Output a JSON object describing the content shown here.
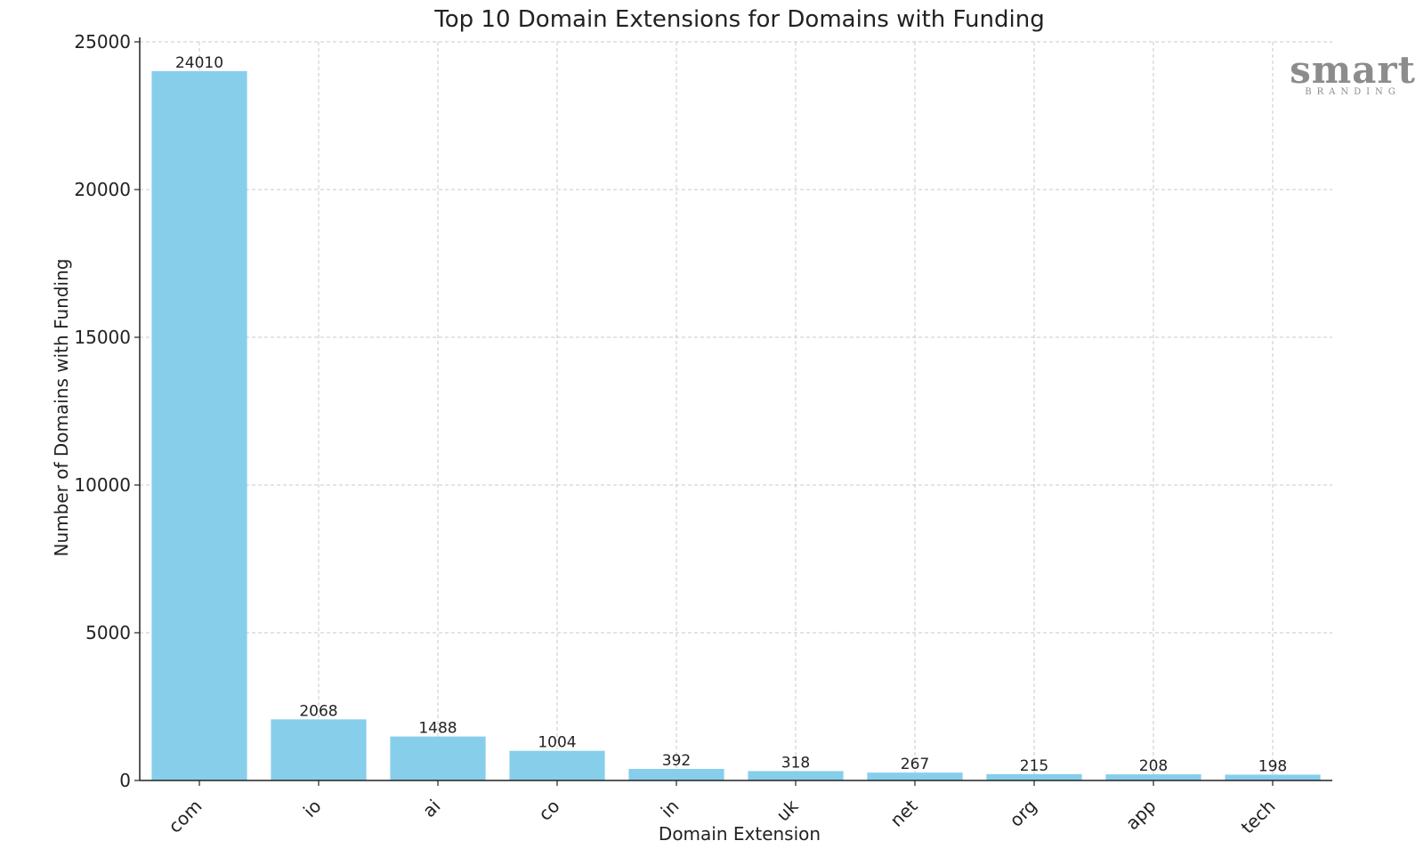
{
  "chart_data": {
    "type": "bar",
    "title": "Top 10 Domain Extensions for Domains with Funding",
    "xlabel": "Domain Extension",
    "ylabel": "Number of Domains with Funding",
    "categories": [
      "com",
      "io",
      "ai",
      "co",
      "in",
      "uk",
      "net",
      "org",
      "app",
      "tech"
    ],
    "values": [
      24010,
      2068,
      1488,
      1004,
      392,
      318,
      267,
      215,
      208,
      198
    ],
    "ylim": [
      0,
      25000
    ],
    "yticks": [
      0,
      5000,
      10000,
      15000,
      20000,
      25000
    ],
    "grid": true,
    "color": "#87CEEB",
    "show_data_labels": true
  },
  "logo": {
    "main": "smart",
    "sub": "BRANDING"
  }
}
